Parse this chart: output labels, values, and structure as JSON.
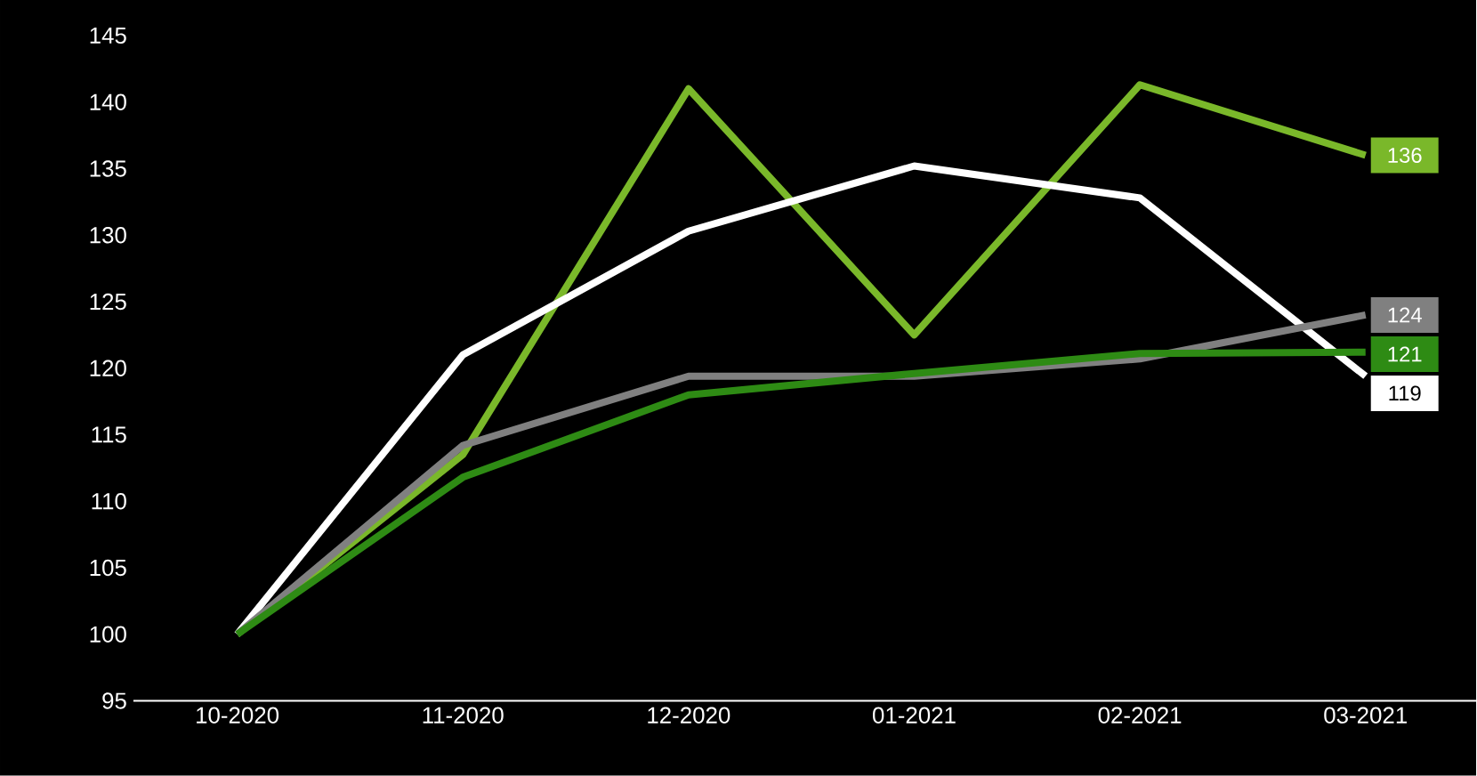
{
  "chart_data": {
    "type": "line",
    "categories": [
      "10-2020",
      "11-2020",
      "12-2020",
      "01-2021",
      "02-2021",
      "03-2021"
    ],
    "series": [
      {
        "color": "#7ab82a",
        "values": [
          100,
          113.5,
          141.0,
          122.5,
          141.3,
          136
        ],
        "value_labels": [
          null,
          null,
          null,
          null,
          null,
          "136"
        ]
      },
      {
        "color": "#ffffff",
        "values": [
          100,
          121.0,
          130.3,
          135.2,
          132.8,
          119.4
        ],
        "value_labels": [
          null,
          null,
          null,
          null,
          null,
          "119"
        ]
      },
      {
        "color": "#808080",
        "values": [
          100,
          114.2,
          119.4,
          119.4,
          120.7,
          124.0
        ],
        "value_labels": [
          null,
          null,
          null,
          null,
          null,
          "124"
        ]
      },
      {
        "color": "#2e8b14",
        "values": [
          100,
          111.8,
          118.0,
          119.6,
          121.1,
          121.2
        ],
        "value_labels": [
          null,
          null,
          null,
          null,
          null,
          "121"
        ]
      }
    ],
    "ylim": [
      95,
      145
    ],
    "yticks": [
      95,
      100,
      105,
      110,
      115,
      120,
      125,
      130,
      135,
      140,
      145
    ],
    "grid": false,
    "marker": "none",
    "line_style": "solid"
  }
}
